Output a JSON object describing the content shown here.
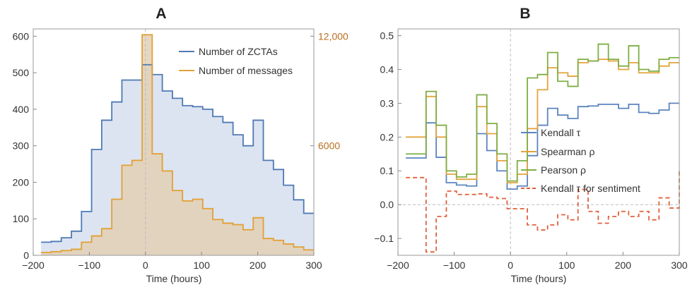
{
  "chart_data": [
    {
      "panel": "A",
      "type": "area",
      "title": "A",
      "xlabel": "Time (hours)",
      "ylabel": "",
      "xlim": [
        -200,
        300
      ],
      "ylim": [
        0,
        620
      ],
      "y2lim": [
        0,
        12400
      ],
      "xticks": [
        -200,
        -100,
        0,
        100,
        200,
        300
      ],
      "xtick_labels": [
        "−200",
        "−100",
        "0",
        "100",
        "200",
        "300"
      ],
      "yticks": [
        0,
        100,
        200,
        300,
        400,
        500,
        600
      ],
      "ytick_labels": [
        "0",
        "100",
        "200",
        "300",
        "400",
        "500",
        "600"
      ],
      "y2ticks": [
        6000,
        12000
      ],
      "y2tick_labels": [
        "6000",
        "12,000"
      ],
      "legend_position": "top-right",
      "vline_x": 0,
      "series": [
        {
          "name": "Number of ZCTAs",
          "axis": "left",
          "step": "post",
          "x": [
            -186,
            -168,
            -150,
            -132,
            -114,
            -96,
            -78,
            -60,
            -42,
            -24,
            -6,
            12,
            30,
            48,
            66,
            84,
            102,
            120,
            138,
            156,
            174,
            192,
            210,
            228,
            246,
            264,
            282,
            300
          ],
          "y": [
            36,
            38,
            48,
            66,
            120,
            290,
            370,
            420,
            480,
            480,
            522,
            495,
            450,
            430,
            410,
            407,
            400,
            380,
            364,
            330,
            300,
            370,
            260,
            235,
            192,
            152,
            115,
            115
          ]
        },
        {
          "name": "Number of messages",
          "axis": "right",
          "step": "post",
          "x": [
            -186,
            -168,
            -150,
            -132,
            -114,
            -96,
            -78,
            -60,
            -42,
            -24,
            -6,
            12,
            30,
            48,
            66,
            84,
            102,
            120,
            138,
            156,
            174,
            192,
            210,
            228,
            246,
            264,
            282,
            300
          ],
          "y": [
            160,
            200,
            260,
            330,
            720,
            1060,
            1460,
            3070,
            4930,
            5200,
            12080,
            5560,
            4620,
            3550,
            2980,
            3070,
            2560,
            1960,
            1760,
            1680,
            1400,
            2060,
            920,
            820,
            620,
            460,
            300,
            300
          ]
        }
      ],
      "colors": {
        "zcta": "#4f79b4",
        "messages": "#e2a033",
        "zcta_fill": "#dce4f2",
        "messages_fill": "#e3d0b5",
        "right_axis": "#b86e1e"
      }
    },
    {
      "panel": "B",
      "type": "line",
      "title": "B",
      "xlabel": "Time (hours)",
      "ylabel": "",
      "xlim": [
        -200,
        300
      ],
      "ylim": [
        -0.15,
        0.52
      ],
      "xticks": [
        -200,
        -100,
        0,
        100,
        200,
        300
      ],
      "xtick_labels": [
        "−200",
        "−100",
        "0",
        "100",
        "200",
        "300"
      ],
      "yticks": [
        -0.1,
        0.0,
        0.1,
        0.2,
        0.3,
        0.4,
        0.5
      ],
      "ytick_labels": [
        "−0.1",
        "0.0",
        "0.1",
        "0.2",
        "0.3",
        "0.4",
        "0.5"
      ],
      "legend_position": "center-right",
      "hline_y": 0,
      "vline_x": 0,
      "series": [
        {
          "name": "Kendall τ",
          "step": "post",
          "x": [
            -186,
            -168,
            -150,
            -132,
            -114,
            -96,
            -78,
            -60,
            -42,
            -24,
            -6,
            12,
            30,
            48,
            66,
            84,
            102,
            120,
            138,
            156,
            174,
            192,
            210,
            228,
            246,
            264,
            282,
            300
          ],
          "y": [
            0.138,
            0.138,
            0.242,
            0.14,
            0.065,
            0.058,
            0.055,
            0.21,
            0.16,
            0.1,
            0.046,
            0.055,
            0.145,
            0.235,
            0.285,
            0.265,
            0.255,
            0.29,
            0.292,
            0.297,
            0.297,
            0.285,
            0.297,
            0.273,
            0.27,
            0.28,
            0.3,
            0.3
          ]
        },
        {
          "name": "Spearman ρ",
          "step": "post",
          "x": [
            -186,
            -168,
            -150,
            -132,
            -114,
            -96,
            -78,
            -60,
            -42,
            -24,
            -6,
            12,
            30,
            48,
            66,
            84,
            102,
            120,
            138,
            156,
            174,
            192,
            210,
            228,
            246,
            264,
            282,
            300
          ],
          "y": [
            0.2,
            0.2,
            0.32,
            0.2,
            0.09,
            0.075,
            0.075,
            0.29,
            0.21,
            0.13,
            0.065,
            0.09,
            0.225,
            0.34,
            0.405,
            0.39,
            0.38,
            0.42,
            0.425,
            0.43,
            0.425,
            0.4,
            0.42,
            0.39,
            0.39,
            0.41,
            0.42,
            0.42
          ]
        },
        {
          "name": "Pearson ρ",
          "step": "post",
          "x": [
            -186,
            -168,
            -150,
            -132,
            -114,
            -96,
            -78,
            -60,
            -42,
            -24,
            -6,
            12,
            30,
            48,
            66,
            84,
            102,
            120,
            138,
            156,
            174,
            192,
            210,
            228,
            246,
            264,
            282,
            300
          ],
          "y": [
            0.15,
            0.15,
            0.335,
            0.235,
            0.1,
            0.082,
            0.09,
            0.325,
            0.24,
            0.15,
            0.07,
            0.13,
            0.375,
            0.385,
            0.45,
            0.365,
            0.35,
            0.43,
            0.425,
            0.475,
            0.43,
            0.41,
            0.47,
            0.4,
            0.395,
            0.43,
            0.435,
            0.435
          ]
        },
        {
          "name": "Kendall τ for sentiment",
          "step": "post",
          "dashed": true,
          "x": [
            -186,
            -168,
            -150,
            -132,
            -114,
            -96,
            -78,
            -60,
            -42,
            -24,
            -6,
            12,
            30,
            48,
            66,
            84,
            102,
            120,
            138,
            156,
            174,
            192,
            210,
            228,
            246,
            264,
            282,
            300
          ],
          "y": [
            0.08,
            0.08,
            -0.14,
            -0.035,
            0.04,
            0.03,
            0.03,
            0.032,
            0.022,
            0.018,
            -0.012,
            -0.012,
            -0.06,
            -0.075,
            -0.06,
            -0.03,
            -0.045,
            0.045,
            -0.02,
            -0.055,
            -0.035,
            -0.02,
            -0.035,
            -0.02,
            -0.045,
            0.02,
            -0.01,
            0.1
          ]
        }
      ],
      "colors": {
        "kendall": "#5c84bf",
        "spearman": "#e3a43c",
        "pearson": "#7fae43",
        "sentiment": "#e0613c"
      }
    }
  ]
}
